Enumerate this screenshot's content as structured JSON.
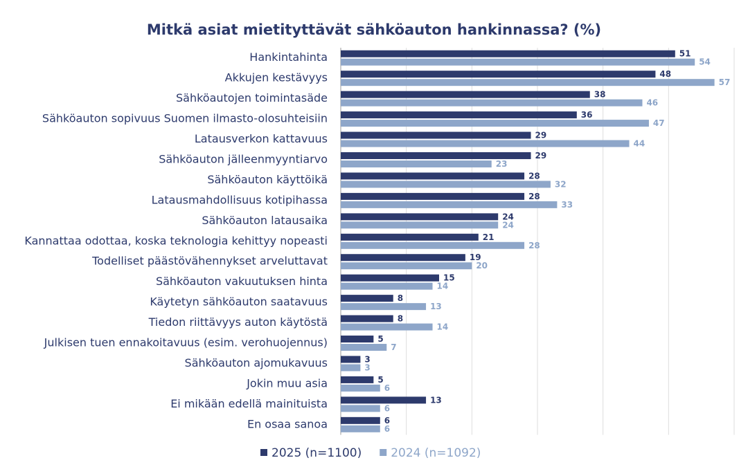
{
  "chart_data": {
    "type": "hbar",
    "title": "Mitkä asiat mietityttävät sähköauton hankinnassa? (%)",
    "categories": [
      "Hankintahinta",
      "Akkujen kestävyys",
      "Sähköautojen toimintasäde",
      "Sähköauton sopivuus Suomen ilmasto-olosuhteisiin",
      "Latausverkon kattavuus",
      "Sähköauton jälleenmyyntiarvo",
      "Sähköauton käyttöikä",
      "Latausmahdollisuus kotipihassa",
      "Sähköauton latausaika",
      "Kannattaa odottaa, koska teknologia kehittyy nopeasti",
      "Todelliset päästövähennykset arveluttavat",
      "Sähköauton vakuutuksen hinta",
      "Käytetyn sähköauton saatavuus",
      "Tiedon riittävyys auton käytöstä",
      "Julkisen tuen ennakoitavuus (esim. verohuojennus)",
      "Sähköauton ajomukavuus",
      "Jokin muu asia",
      "Ei mikään edellä mainituista",
      "En osaa sanoa"
    ],
    "series": [
      {
        "name": "2025 (n=1100)",
        "color": "#2d3a6c",
        "values": [
          51,
          48,
          38,
          36,
          29,
          29,
          28,
          28,
          24,
          21,
          19,
          15,
          8,
          8,
          5,
          3,
          5,
          13,
          6
        ]
      },
      {
        "name": "2024 (n=1092)",
        "color": "#8ea6c9",
        "values": [
          54,
          57,
          46,
          47,
          44,
          23,
          32,
          33,
          24,
          28,
          20,
          14,
          13,
          14,
          7,
          3,
          6,
          6,
          6
        ]
      }
    ],
    "xlim": [
      0,
      60
    ],
    "xticks": [
      0,
      10,
      20,
      30,
      40,
      50,
      60
    ],
    "grid": true
  }
}
